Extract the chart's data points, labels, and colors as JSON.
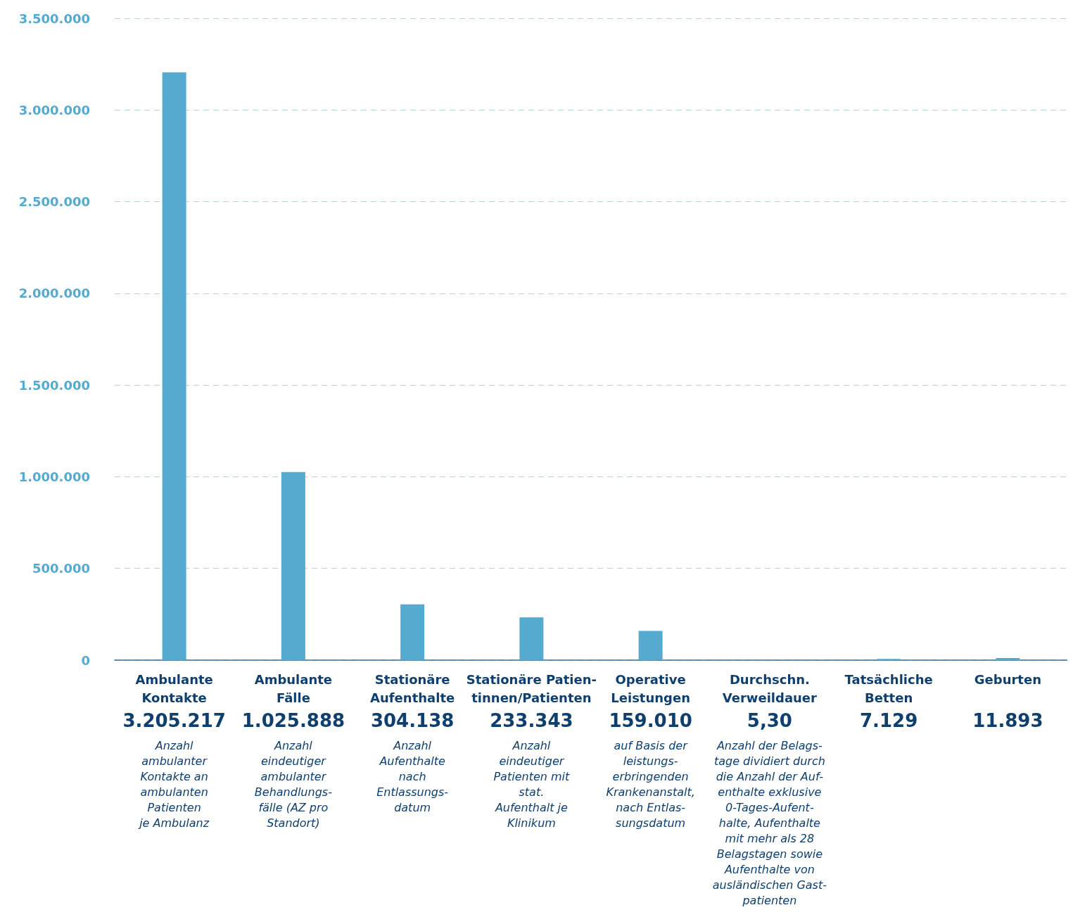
{
  "chart_data": {
    "type": "bar",
    "categories": [
      "Ambulante\nKontakte",
      "Ambulante\nFälle",
      "Stationäre\nAufenthalte",
      "Stationäre Patien-\ntinnen/Patienten",
      "Operative\nLeistungen",
      "Durchschn.\nVerweildauer",
      "Tatsächliche\nBetten",
      "Geburten"
    ],
    "values": [
      3205217,
      1025888,
      304138,
      233343,
      159010,
      5.3,
      7129,
      11893
    ],
    "value_labels": [
      "3.205.217",
      "1.025.888",
      "304.138",
      "233.343",
      "159.010",
      "5,30",
      "7.129",
      "11.893"
    ],
    "color": "#55aad0",
    "ylim": [
      0,
      3500000
    ],
    "yticks": [
      {
        "value": 0,
        "label": "0"
      },
      {
        "value": 500000,
        "label": "500.000"
      },
      {
        "value": 1000000,
        "label": "1.000.000"
      },
      {
        "value": 1500000,
        "label": "1.500.000"
      },
      {
        "value": 2000000,
        "label": "2.000.000"
      },
      {
        "value": 2500000,
        "label": "2.500.000"
      },
      {
        "value": 3000000,
        "label": "3.000.000"
      },
      {
        "value": 3500000,
        "label": "3.500.000"
      }
    ],
    "grid": "y",
    "annotations": [
      "Anzahl\nambulanter\nKontakte an\nambulanten\nPatienten\nje Ambulanz",
      "Anzahl\neindeutiger\nambulanter\nBehandlungs-\nfälle (AZ pro\nStandort)",
      "Anzahl\nAufenthalte\nnach\nEntlassungs-\ndatum",
      "Anzahl\neindeutiger\nPatienten mit\nstat.\nAufenthalt je\nKlinikum",
      "auf Basis der\nleistungs-\nerbringenden\nKrankenanstalt,\nnach Entlas-\nsungsdatum",
      "Anzahl der Belags-\ntage dividiert durch\ndie Anzahl der Auf-\nenthalte exklusive\n0-Tages-Aufent-\nhalte, Aufenthalte\nmit mehr als 28\nBelagstagen sowie\nAufenthalte von\nausländischen Gast-\npatienten"
    ]
  }
}
